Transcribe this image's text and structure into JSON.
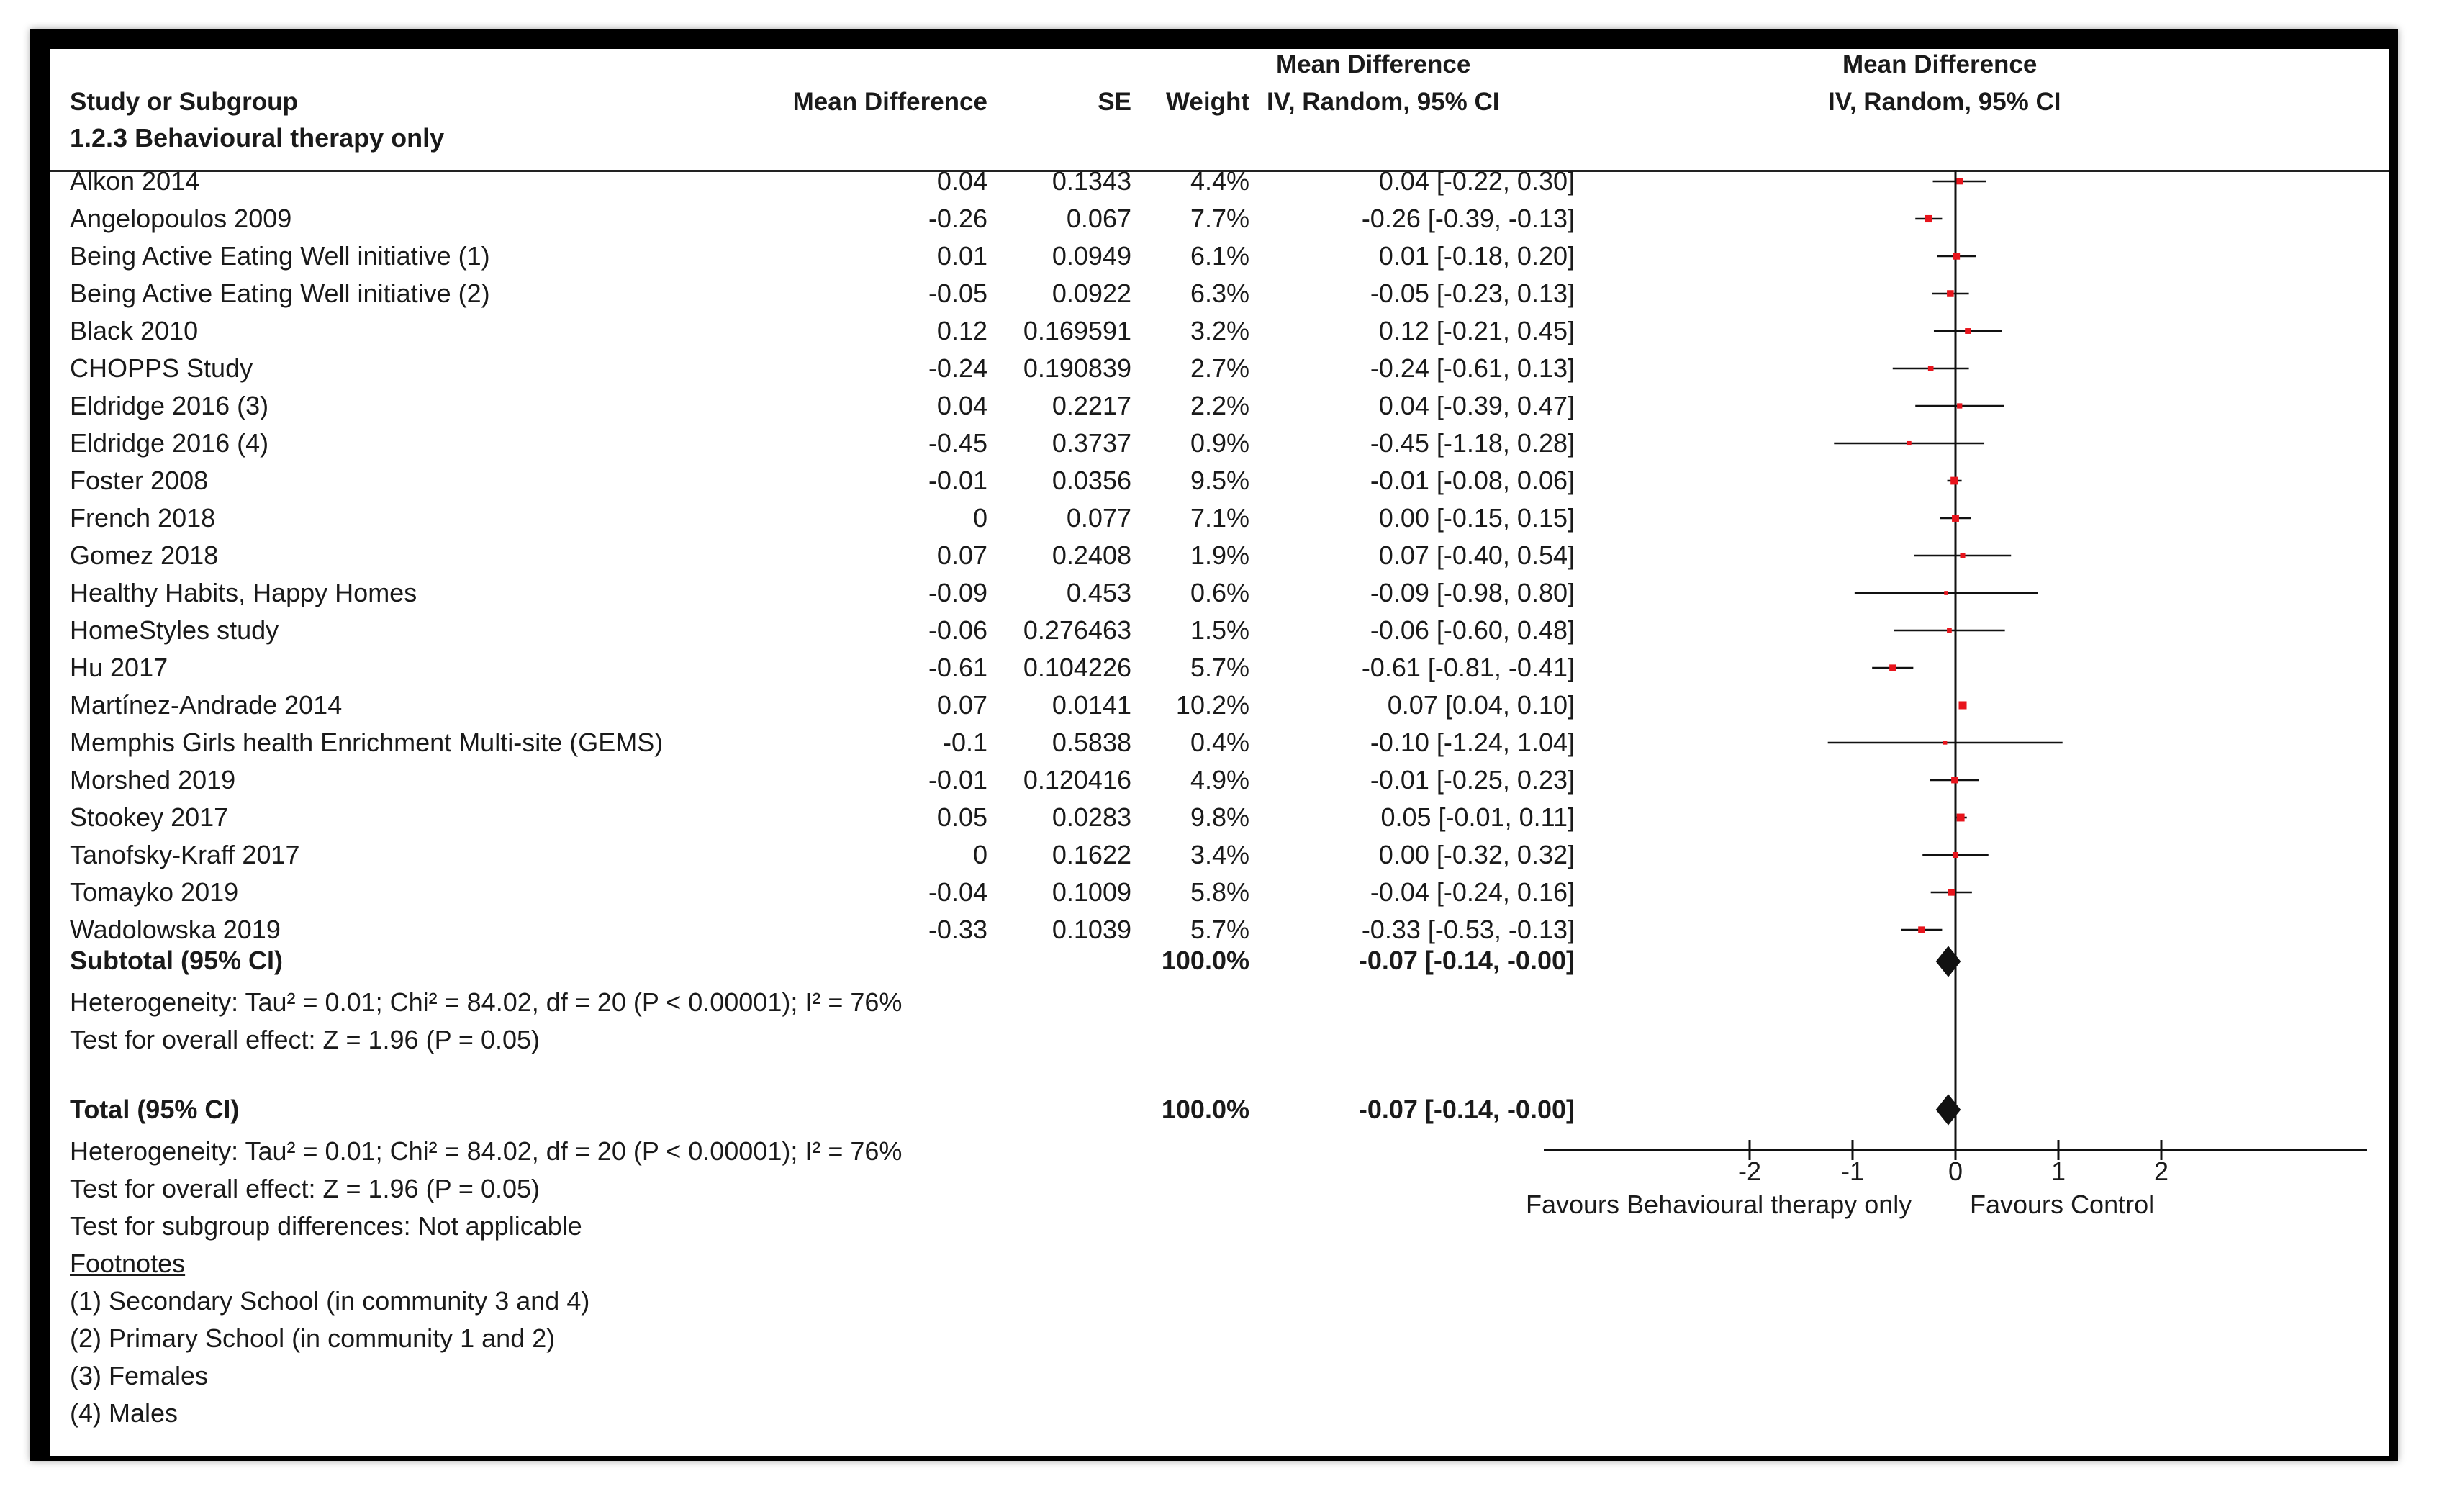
{
  "header": {
    "study": "Study or Subgroup",
    "md": "Mean Difference",
    "se": "SE",
    "weight": "Weight",
    "ci_title": "Mean Difference",
    "ci_sub": "IV, Random, 95% CI",
    "plot_title": "Mean Difference",
    "plot_sub": "IV, Random, 95% CI"
  },
  "subgroup_title": "1.2.3 Behavioural therapy only",
  "rows": [
    {
      "study": "Alkon 2014",
      "md": "0.04",
      "se": "0.1343",
      "weight": "4.4%",
      "ci": "0.04 [-0.22, 0.30]"
    },
    {
      "study": "Angelopoulos 2009",
      "md": "-0.26",
      "se": "0.067",
      "weight": "7.7%",
      "ci": "-0.26 [-0.39, -0.13]"
    },
    {
      "study": "Being Active Eating Well initiative (1)",
      "md": "0.01",
      "se": "0.0949",
      "weight": "6.1%",
      "ci": "0.01 [-0.18, 0.20]"
    },
    {
      "study": "Being Active Eating Well initiative (2)",
      "md": "-0.05",
      "se": "0.0922",
      "weight": "6.3%",
      "ci": "-0.05 [-0.23, 0.13]"
    },
    {
      "study": "Black 2010",
      "md": "0.12",
      "se": "0.169591",
      "weight": "3.2%",
      "ci": "0.12 [-0.21, 0.45]"
    },
    {
      "study": "CHOPPS Study",
      "md": "-0.24",
      "se": "0.190839",
      "weight": "2.7%",
      "ci": "-0.24 [-0.61, 0.13]"
    },
    {
      "study": "Eldridge 2016 (3)",
      "md": "0.04",
      "se": "0.2217",
      "weight": "2.2%",
      "ci": "0.04 [-0.39, 0.47]"
    },
    {
      "study": "Eldridge 2016 (4)",
      "md": "-0.45",
      "se": "0.3737",
      "weight": "0.9%",
      "ci": "-0.45 [-1.18, 0.28]"
    },
    {
      "study": "Foster 2008",
      "md": "-0.01",
      "se": "0.0356",
      "weight": "9.5%",
      "ci": "-0.01 [-0.08, 0.06]"
    },
    {
      "study": "French 2018",
      "md": "0",
      "se": "0.077",
      "weight": "7.1%",
      "ci": "0.00 [-0.15, 0.15]"
    },
    {
      "study": "Gomez 2018",
      "md": "0.07",
      "se": "0.2408",
      "weight": "1.9%",
      "ci": "0.07 [-0.40, 0.54]"
    },
    {
      "study": "Healthy Habits, Happy Homes",
      "md": "-0.09",
      "se": "0.453",
      "weight": "0.6%",
      "ci": "-0.09 [-0.98, 0.80]"
    },
    {
      "study": "HomeStyles study",
      "md": "-0.06",
      "se": "0.276463",
      "weight": "1.5%",
      "ci": "-0.06 [-0.60, 0.48]"
    },
    {
      "study": "Hu 2017",
      "md": "-0.61",
      "se": "0.104226",
      "weight": "5.7%",
      "ci": "-0.61 [-0.81, -0.41]"
    },
    {
      "study": "Martínez-Andrade 2014",
      "md": "0.07",
      "se": "0.0141",
      "weight": "10.2%",
      "ci": "0.07 [0.04, 0.10]"
    },
    {
      "study": "Memphis Girls health Enrichment Multi-site (GEMS)",
      "md": "-0.1",
      "se": "0.5838",
      "weight": "0.4%",
      "ci": "-0.10 [-1.24, 1.04]"
    },
    {
      "study": "Morshed 2019",
      "md": "-0.01",
      "se": "0.120416",
      "weight": "4.9%",
      "ci": "-0.01 [-0.25, 0.23]"
    },
    {
      "study": "Stookey 2017",
      "md": "0.05",
      "se": "0.0283",
      "weight": "9.8%",
      "ci": "0.05 [-0.01, 0.11]"
    },
    {
      "study": "Tanofsky-Kraff 2017",
      "md": "0",
      "se": "0.1622",
      "weight": "3.4%",
      "ci": "0.00 [-0.32, 0.32]"
    },
    {
      "study": "Tomayko 2019",
      "md": "-0.04",
      "se": "0.1009",
      "weight": "5.8%",
      "ci": "-0.04 [-0.24, 0.16]"
    },
    {
      "study": "Wadolowska 2019",
      "md": "-0.33",
      "se": "0.1039",
      "weight": "5.7%",
      "ci": "-0.33 [-0.53, -0.13]"
    }
  ],
  "subtotal": {
    "label": "Subtotal (95% CI)",
    "weight": "100.0%",
    "ci": "-0.07 [-0.14, -0.00]"
  },
  "subgroup_stats": {
    "heterogeneity": "Heterogeneity: Tau² = 0.01; Chi² = 84.02, df = 20 (P < 0.00001); I² = 76%",
    "overall": "Test for overall effect: Z = 1.96 (P = 0.05)"
  },
  "total": {
    "label": "Total (95% CI)",
    "weight": "100.0%",
    "ci": "-0.07 [-0.14, -0.00]"
  },
  "total_stats": {
    "heterogeneity": "Heterogeneity: Tau² = 0.01; Chi² = 84.02, df = 20 (P < 0.00001); I² = 76%",
    "overall": "Test for overall effect: Z = 1.96 (P = 0.05)",
    "subgroup_diff": "Test for subgroup differences: Not applicable"
  },
  "footnotes": {
    "title": "Footnotes",
    "items": [
      "(1) Secondary School (in community 3 and 4)",
      "(2) Primary School (in community 1 and 2)",
      "(3) Females",
      "(4) Males"
    ]
  },
  "axis": {
    "favours_left": "Favours Behavioural therapy only",
    "favours_right": "Favours Control"
  },
  "colors": {
    "square": "#e8141c",
    "line": "#111111",
    "diamond": "#111111"
  },
  "chart_data": {
    "type": "forest",
    "title": "Mean Difference IV, Random, 95% CI",
    "xlim": [
      -4,
      4
    ],
    "ticks": [
      -2,
      -1,
      0,
      1,
      2
    ],
    "studies": [
      {
        "name": "Alkon 2014",
        "md": 0.04,
        "lo": -0.22,
        "hi": 0.3,
        "weight": 4.4
      },
      {
        "name": "Angelopoulos 2009",
        "md": -0.26,
        "lo": -0.39,
        "hi": -0.13,
        "weight": 7.7
      },
      {
        "name": "Being Active Eating Well initiative (1)",
        "md": 0.01,
        "lo": -0.18,
        "hi": 0.2,
        "weight": 6.1
      },
      {
        "name": "Being Active Eating Well initiative (2)",
        "md": -0.05,
        "lo": -0.23,
        "hi": 0.13,
        "weight": 6.3
      },
      {
        "name": "Black 2010",
        "md": 0.12,
        "lo": -0.21,
        "hi": 0.45,
        "weight": 3.2
      },
      {
        "name": "CHOPPS Study",
        "md": -0.24,
        "lo": -0.61,
        "hi": 0.13,
        "weight": 2.7
      },
      {
        "name": "Eldridge 2016 (3)",
        "md": 0.04,
        "lo": -0.39,
        "hi": 0.47,
        "weight": 2.2
      },
      {
        "name": "Eldridge 2016 (4)",
        "md": -0.45,
        "lo": -1.18,
        "hi": 0.28,
        "weight": 0.9
      },
      {
        "name": "Foster 2008",
        "md": -0.01,
        "lo": -0.08,
        "hi": 0.06,
        "weight": 9.5
      },
      {
        "name": "French 2018",
        "md": 0.0,
        "lo": -0.15,
        "hi": 0.15,
        "weight": 7.1
      },
      {
        "name": "Gomez 2018",
        "md": 0.07,
        "lo": -0.4,
        "hi": 0.54,
        "weight": 1.9
      },
      {
        "name": "Healthy Habits, Happy Homes",
        "md": -0.09,
        "lo": -0.98,
        "hi": 0.8,
        "weight": 0.6
      },
      {
        "name": "HomeStyles study",
        "md": -0.06,
        "lo": -0.6,
        "hi": 0.48,
        "weight": 1.5
      },
      {
        "name": "Hu 2017",
        "md": -0.61,
        "lo": -0.81,
        "hi": -0.41,
        "weight": 5.7
      },
      {
        "name": "Martínez-Andrade 2014",
        "md": 0.07,
        "lo": 0.04,
        "hi": 0.1,
        "weight": 10.2
      },
      {
        "name": "Memphis Girls health Enrichment Multi-site (GEMS)",
        "md": -0.1,
        "lo": -1.24,
        "hi": 1.04,
        "weight": 0.4
      },
      {
        "name": "Morshed 2019",
        "md": -0.01,
        "lo": -0.25,
        "hi": 0.23,
        "weight": 4.9
      },
      {
        "name": "Stookey 2017",
        "md": 0.05,
        "lo": -0.01,
        "hi": 0.11,
        "weight": 9.8
      },
      {
        "name": "Tanofsky-Kraff 2017",
        "md": 0.0,
        "lo": -0.32,
        "hi": 0.32,
        "weight": 3.4
      },
      {
        "name": "Tomayko 2019",
        "md": -0.04,
        "lo": -0.24,
        "hi": 0.16,
        "weight": 5.8
      },
      {
        "name": "Wadolowska 2019",
        "md": -0.33,
        "lo": -0.53,
        "hi": -0.13,
        "weight": 5.7
      }
    ],
    "pooled": [
      {
        "name": "Subtotal (95% CI)",
        "md": -0.07,
        "lo": -0.14,
        "hi": -0.0
      },
      {
        "name": "Total (95% CI)",
        "md": -0.07,
        "lo": -0.14,
        "hi": -0.0
      }
    ]
  }
}
